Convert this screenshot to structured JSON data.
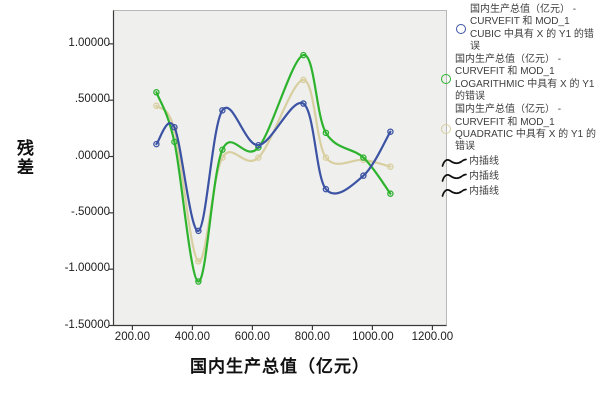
{
  "chart_data": {
    "type": "line",
    "title": "",
    "xlabel": "国内生产总值（亿元）",
    "ylabel": "残差",
    "xticks": [
      "200.00",
      "400.00",
      "600.00",
      "800.00",
      "1000.00",
      "1200.00"
    ],
    "yticks": [
      "1.00000",
      ".50000",
      ".00000",
      "-.50000",
      "-1.00000",
      "-1.50000"
    ],
    "xlim": [
      137,
      1247
    ],
    "ylim": [
      -1.5,
      1.296
    ],
    "grid": false,
    "legend_position": "right",
    "marker": "open-circle",
    "line_style": "cubic-spline-interpolation",
    "plot_bg": "#efefee",
    "frame_color": "#b8b8b8",
    "axis_color": "#3a3a3a",
    "x": [
      280,
      340,
      420,
      500,
      620,
      770,
      845,
      970,
      1060
    ],
    "series": [
      {
        "name": "国内生产总值（亿元） - CURVEFIT 和 MOD_1 CUBIC 中具有 X 的 Y1 的错误",
        "color": "#3c53a4",
        "values": [
          0.11,
          0.26,
          -0.66,
          0.41,
          0.1,
          0.47,
          -0.29,
          -0.17,
          0.22
        ]
      },
      {
        "name": "国内生产总值（亿元） - CURVEFIT 和 MOD_1 LOGARITHMIC 中具有 X 的 Y1 的错误",
        "color": "#2db32d",
        "values": [
          0.57,
          0.13,
          -1.11,
          0.06,
          0.08,
          0.9,
          0.21,
          -0.01,
          -0.33
        ]
      },
      {
        "name": "国内生产总值（亿元） - CURVEFIT 和 MOD_1 QUADRATIC 中具有 X 的 Y1 的错误",
        "color": "#d8cfa0",
        "values": [
          0.45,
          0.24,
          -0.93,
          -0.01,
          -0.01,
          0.68,
          -0.01,
          -0.03,
          -0.09
        ]
      }
    ],
    "interp_lines": [
      {
        "label": "内插线"
      },
      {
        "label": "内插线"
      },
      {
        "label": "内插线"
      }
    ],
    "interp_icon_color": "#111111"
  }
}
